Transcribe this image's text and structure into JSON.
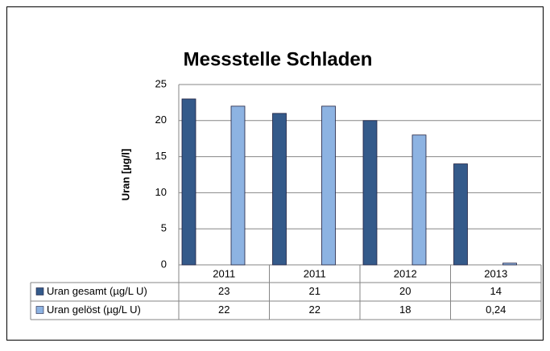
{
  "chart_data": {
    "type": "bar",
    "title": "Messstelle Schladen",
    "y_label": "Uran [µg/l]",
    "categories": [
      "2011",
      "2011",
      "2012",
      "2013"
    ],
    "series": [
      {
        "name": "Uran gesamt (µg/L U)",
        "color": "#345a8a",
        "values": [
          23,
          21,
          20,
          14
        ]
      },
      {
        "name": "Uran gelöst (µg/L U)",
        "color": "#8db3e2",
        "values": [
          22,
          22,
          18,
          0.24
        ],
        "value_labels": [
          "22",
          "22",
          "18",
          "0,24"
        ]
      }
    ],
    "ylim": [
      0,
      25
    ],
    "yticks": [
      0,
      5,
      10,
      15,
      20,
      25
    ],
    "grid": true
  }
}
